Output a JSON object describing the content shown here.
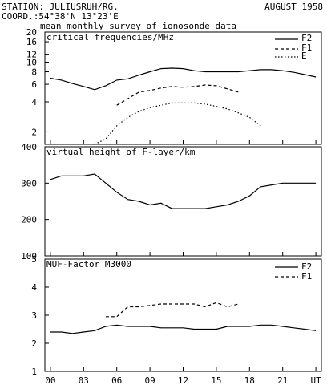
{
  "header": {
    "station": "STATION: JULIUSRUH/RG.",
    "date": "AUGUST 1958",
    "coord": "COORD.:54°38'N 13°23'E",
    "subtitle": "mean monthly survey of ionosonde data"
  },
  "x_axis": {
    "ticks": [
      0,
      3,
      6,
      9,
      12,
      15,
      18,
      21,
      24
    ],
    "tick_labels": [
      "00",
      "03",
      "06",
      "09",
      "12",
      "15",
      "18",
      "21",
      "UT"
    ],
    "range": [
      -0.5,
      24.5
    ]
  },
  "chart_data": [
    {
      "type": "line",
      "title": "critical frequencies/MHz",
      "yscale": "log",
      "ylim": [
        1.5,
        20
      ],
      "yticks": [
        2,
        4,
        6,
        8,
        10,
        12,
        16,
        20
      ],
      "legend": "top-right",
      "series": [
        {
          "name": "F2",
          "style": "solid",
          "x": [
            0,
            1,
            2,
            3,
            4,
            5,
            6,
            7,
            8,
            9,
            10,
            11,
            12,
            13,
            14,
            15,
            16,
            17,
            18,
            19,
            20,
            21,
            22,
            23,
            24
          ],
          "y": [
            6.9,
            6.6,
            6.1,
            5.7,
            5.3,
            5.8,
            6.6,
            6.8,
            7.4,
            8.0,
            8.6,
            8.7,
            8.6,
            8.2,
            8.0,
            8.0,
            8.0,
            8.0,
            8.2,
            8.4,
            8.4,
            8.2,
            7.9,
            7.5,
            7.1
          ]
        },
        {
          "name": "F1",
          "style": "dashed",
          "x": [
            6,
            7,
            8,
            9,
            10,
            11,
            12,
            13,
            14,
            15,
            16,
            17
          ],
          "y": [
            3.7,
            4.3,
            5.0,
            5.2,
            5.5,
            5.7,
            5.6,
            5.7,
            5.9,
            5.8,
            5.4,
            5.0
          ]
        },
        {
          "name": "E",
          "style": "dotted",
          "x": [
            4,
            5,
            6,
            7,
            8,
            9,
            10,
            11,
            12,
            13,
            14,
            15,
            16,
            17,
            18,
            19
          ],
          "y": [
            1.5,
            1.7,
            2.3,
            2.8,
            3.2,
            3.5,
            3.7,
            3.9,
            3.9,
            3.9,
            3.8,
            3.6,
            3.4,
            3.1,
            2.8,
            2.3
          ]
        }
      ]
    },
    {
      "type": "line",
      "title": "virtual height of F-layer/km",
      "ylim": [
        100,
        400
      ],
      "yticks": [
        100,
        200,
        300,
        400
      ],
      "series": [
        {
          "style": "solid",
          "x": [
            0,
            1,
            2,
            3,
            4,
            5,
            6,
            7,
            8,
            9,
            10,
            11,
            12,
            13,
            14,
            15,
            16,
            17,
            18,
            19,
            20,
            21,
            22,
            23,
            24
          ],
          "y": [
            310,
            320,
            320,
            320,
            325,
            300,
            275,
            255,
            250,
            240,
            245,
            230,
            230,
            230,
            230,
            235,
            240,
            250,
            265,
            290,
            295,
            300,
            300,
            300,
            300
          ]
        }
      ]
    },
    {
      "type": "line",
      "title": "MUF-Factor M3000",
      "ylim": [
        1,
        5
      ],
      "yticks": [
        1,
        2,
        3,
        4,
        5
      ],
      "legend": "top-right",
      "series": [
        {
          "name": "F2",
          "style": "solid",
          "x": [
            0,
            1,
            2,
            3,
            4,
            5,
            6,
            7,
            8,
            9,
            10,
            11,
            12,
            13,
            14,
            15,
            16,
            17,
            18,
            19,
            20,
            21,
            22,
            23,
            24
          ],
          "y": [
            2.4,
            2.4,
            2.35,
            2.4,
            2.45,
            2.6,
            2.65,
            2.6,
            2.6,
            2.6,
            2.55,
            2.55,
            2.55,
            2.5,
            2.5,
            2.5,
            2.6,
            2.6,
            2.6,
            2.65,
            2.65,
            2.6,
            2.55,
            2.5,
            2.45
          ]
        },
        {
          "name": "F1",
          "style": "dashed",
          "x": [
            5,
            6,
            7,
            8,
            9,
            10,
            11,
            12,
            13,
            14,
            15,
            16,
            17
          ],
          "y": [
            2.95,
            2.95,
            3.3,
            3.3,
            3.35,
            3.4,
            3.4,
            3.4,
            3.4,
            3.3,
            3.45,
            3.3,
            3.4
          ]
        }
      ]
    }
  ]
}
